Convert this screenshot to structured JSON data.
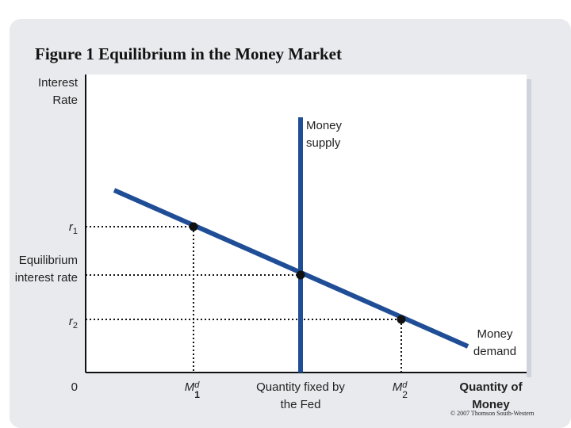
{
  "title": "Figure 1 Equilibrium in the Money Market",
  "y_axis_label": "Interest Rate",
  "x_axis_label": "Quantity of Money",
  "origin_label": "0",
  "supply_label": "Money supply",
  "demand_label": "Money demand",
  "r1_label": "r",
  "r1_sub": "1",
  "r2_label": "r",
  "r2_sub": "2",
  "equilibrium_label": "Equilibrium interest rate",
  "m1_label": "M",
  "m1_sup": "d",
  "m1_sub": "1",
  "m2_label": "M",
  "m2_sup": "d",
  "m2_sub": "2",
  "fixed_label": "Quantity fixed by the Fed",
  "copyright": "© 2007 Thomson South-Western",
  "colors": {
    "curve": "#1f4e96",
    "panel_bg": "#e8eaee",
    "plot_bg": "#ffffff"
  }
}
